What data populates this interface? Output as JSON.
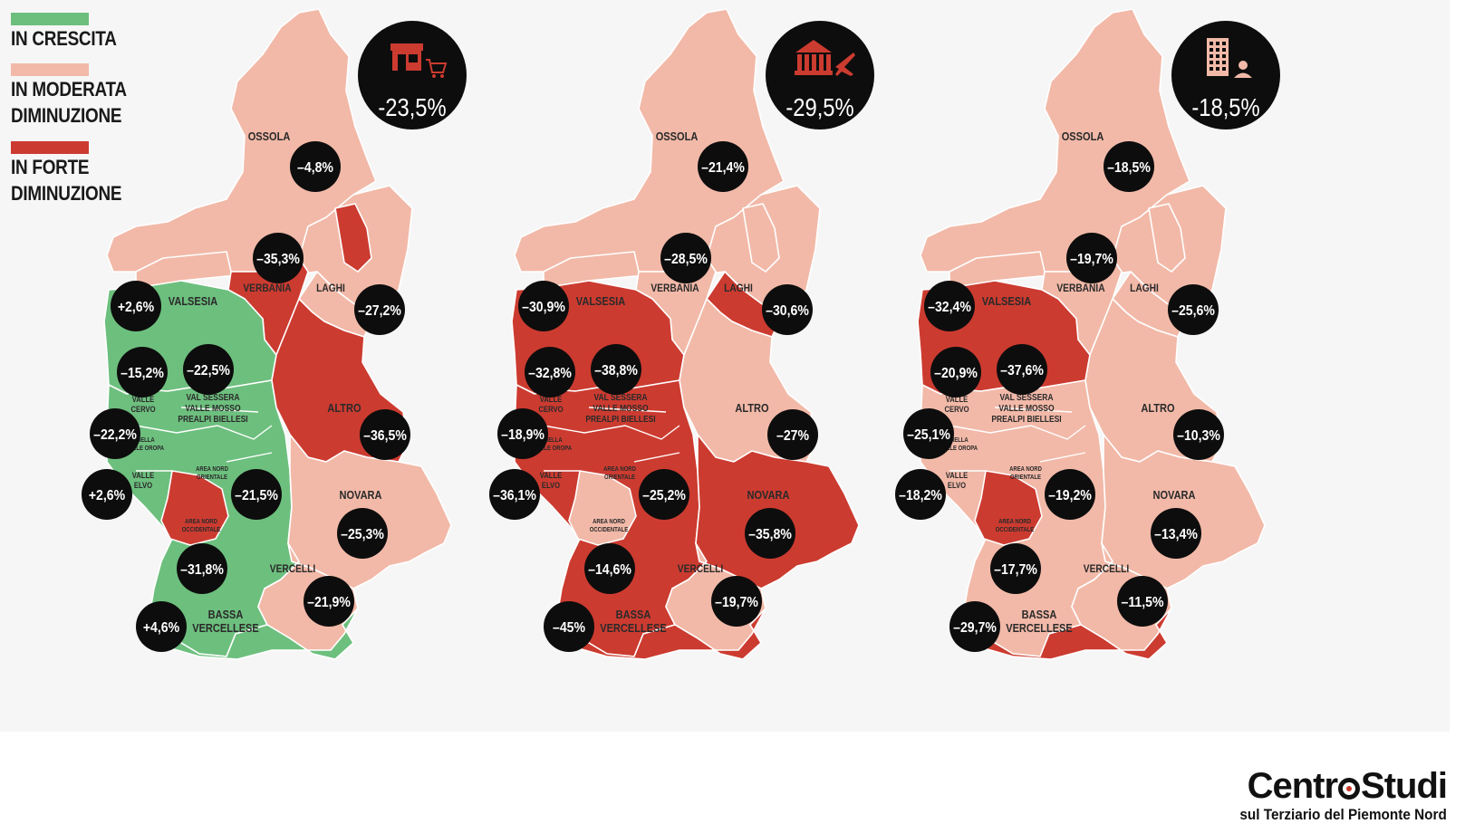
{
  "legend": [
    {
      "lines": [
        "IN CRESCITA"
      ],
      "color": "#6dbf7e"
    },
    {
      "lines": [
        "IN MODERATA",
        "DIMINUZIONE"
      ],
      "color": "#f2b9a8"
    },
    {
      "lines": [
        "IN FORTE",
        "DIMINUZIONE"
      ],
      "color": "#cc3b30"
    }
  ],
  "colors": {
    "crescita": "#6dbf7e",
    "moderata": "#f2b9a8",
    "forte": "#cc3b30",
    "badge": "#0d0d0d",
    "panel": "#f6f6f6"
  },
  "map_labels": {
    "ossola": "OSSOLA",
    "verbania": "VERBANIA",
    "laghi": "LAGHI",
    "valsesia": "VALSESIA",
    "altro": "ALTRO",
    "novara": "NOVARA",
    "vercelli": "VERCELLI",
    "bassa": [
      "BASSA",
      "VERCELLESE"
    ],
    "valle_cervo": [
      "VALLE",
      "CERVO"
    ],
    "val_sessera": [
      "VAL SESSERA",
      "VALLE MOSSO",
      "PREALPI BIELLESI"
    ],
    "biella": [
      "BIELLA",
      "VALLE OROPA"
    ],
    "valle_elvo": [
      "VALLE",
      "ELVO"
    ],
    "area_nord_orientale": [
      "AREA NORD",
      "ORIENTALE"
    ],
    "area_nord_occidentale": [
      "AREA NORD",
      "OCCIDENTALE"
    ]
  },
  "maps": [
    {
      "sector_icon": "shop-cart-icon",
      "total": "-23,5%",
      "values": {
        "ossola": "–4,8%",
        "verbania": "–35,3%",
        "laghi": "–27,2%",
        "valsesia": "+2,6%",
        "valle_cervo": "–15,2%",
        "val_sessera": "–22,5%",
        "biella": "–22,2%",
        "valle_elvo": "+2,6%",
        "area_nord_orientale": "–21,5%",
        "altro": "–36,5%",
        "novara": "–25,3%",
        "area_nord_occidentale": "–31,8%",
        "vercelli": "–21,9%",
        "bassa": "+4,6%"
      },
      "classes": {
        "ossola": "moderata",
        "verbania": "forte",
        "laghi": "moderata",
        "valsesia": "crescita",
        "biella_area": "crescita",
        "area_nord_occidentale": "forte",
        "altro": "forte",
        "novara": "moderata",
        "vercelli": "moderata",
        "bassa": "crescita"
      }
    },
    {
      "sector_icon": "bank-plane-icon",
      "total": "-29,5%",
      "values": {
        "ossola": "–21,4%",
        "verbania": "–28,5%",
        "laghi": "–30,6%",
        "valsesia": "–30,9%",
        "valle_cervo": "–32,8%",
        "val_sessera": "–38,8%",
        "biella": "–18,9%",
        "valle_elvo": "–36,1%",
        "area_nord_orientale": "–25,2%",
        "altro": "–27%",
        "novara": "–35,8%",
        "area_nord_occidentale": "–14,6%",
        "vercelli": "–19,7%",
        "bassa": "–45%"
      },
      "classes": {
        "ossola": "moderata",
        "verbania": "moderata",
        "laghi": "forte",
        "valsesia": "forte",
        "biella_area": "forte",
        "area_nord_occidentale": "moderata",
        "altro": "moderata",
        "novara": "forte",
        "vercelli": "moderata",
        "bassa": "forte"
      }
    },
    {
      "sector_icon": "office-building-person-icon",
      "total": "-18,5%",
      "values": {
        "ossola": "–18,5%",
        "verbania": "–19,7%",
        "laghi": "–25,6%",
        "valsesia": "–32,4%",
        "valle_cervo": "–20,9%",
        "val_sessera": "–37,6%",
        "biella": "–25,1%",
        "valle_elvo": "–18,2%",
        "area_nord_orientale": "–19,2%",
        "altro": "–10,3%",
        "novara": "–13,4%",
        "area_nord_occidentale": "–17,7%",
        "vercelli": "–11,5%",
        "bassa": "–29,7%"
      },
      "classes": {
        "ossola": "moderata",
        "verbania": "moderata",
        "laghi": "moderata",
        "valsesia": "forte",
        "biella_area": "moderata",
        "area_nord_occidentale": "forte",
        "altro": "moderata",
        "novara": "moderata",
        "vercelli": "moderata",
        "bassa": "forte"
      }
    }
  ],
  "brand": {
    "name_left": "Centr",
    "name_right": "Studi",
    "subtitle": "sul Terziario del Piemonte Nord"
  }
}
